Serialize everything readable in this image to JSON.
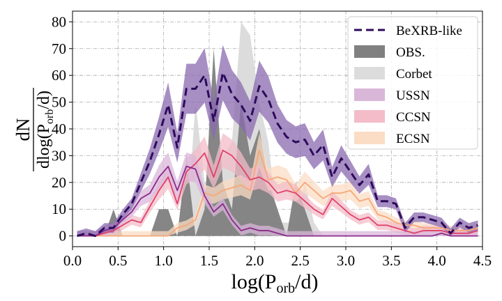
{
  "chart_data": {
    "type": "line",
    "xlabel": "log(P_orb/d)",
    "ylabel": "dN / dlog(P_orb/d)",
    "xlim": [
      0.0,
      4.5
    ],
    "ylim": [
      -4,
      84
    ],
    "x_ticks": [
      "0.0",
      "0.5",
      "1.0",
      "1.5",
      "2.0",
      "2.5",
      "3.0",
      "3.5",
      "4.0",
      "4.5"
    ],
    "y_ticks": [
      "0",
      "10",
      "20",
      "30",
      "40",
      "50",
      "60",
      "70",
      "80"
    ],
    "grid": true,
    "legend_position": "top-right",
    "series": [
      {
        "name": "BeXRB-like",
        "style": "dashed",
        "color": "#2d0a5a",
        "band_color": "#8a6ab0",
        "x": [
          0.05,
          0.15,
          0.25,
          0.35,
          0.45,
          0.55,
          0.65,
          0.75,
          0.85,
          0.95,
          1.05,
          1.15,
          1.25,
          1.35,
          1.45,
          1.55,
          1.65,
          1.75,
          1.85,
          1.95,
          2.05,
          2.15,
          2.25,
          2.35,
          2.45,
          2.55,
          2.65,
          2.75,
          2.85,
          2.95,
          3.05,
          3.15,
          3.25,
          3.35,
          3.45,
          3.55,
          3.65,
          3.75,
          3.85,
          3.95,
          4.05,
          4.15,
          4.25,
          4.35,
          4.45
        ],
        "values": [
          0,
          1,
          0,
          3,
          3,
          8,
          12,
          20,
          28,
          38,
          49,
          33,
          55,
          55,
          60,
          43,
          61,
          53,
          49,
          43,
          56,
          51,
          42,
          37,
          35,
          36,
          30,
          34,
          22,
          29,
          24,
          19,
          23,
          13,
          13,
          12,
          3,
          7,
          7,
          6,
          5,
          1,
          5,
          3,
          4
        ]
      },
      {
        "name": "OBS.",
        "style": "fill",
        "color": "#808080",
        "x": [
          0.25,
          0.35,
          0.45,
          0.55,
          0.65,
          0.75,
          0.85,
          0.95,
          1.05,
          1.15,
          1.25,
          1.35,
          1.45,
          1.55,
          1.65,
          1.75,
          1.85,
          1.95,
          2.05,
          2.15,
          2.25,
          2.35,
          2.45,
          2.55,
          2.65,
          2.75
        ],
        "values": [
          0,
          0,
          10,
          0,
          0,
          0,
          0,
          10,
          10,
          0,
          30,
          0,
          10,
          70,
          20,
          10,
          50,
          30,
          40,
          20,
          10,
          0,
          20,
          10,
          0,
          0
        ]
      },
      {
        "name": "Corbet",
        "style": "fill",
        "color": "#dcdcdc",
        "x": [
          1.15,
          1.25,
          1.35,
          1.45,
          1.55,
          1.65,
          1.75,
          1.85,
          1.95,
          2.05,
          2.15,
          2.25,
          2.35,
          2.45,
          2.55,
          2.65,
          2.75
        ],
        "values": [
          0,
          0,
          50,
          20,
          20,
          30,
          35,
          80,
          75,
          50,
          35,
          5,
          5,
          5,
          20,
          5,
          0
        ]
      },
      {
        "name": "USSN",
        "style": "line",
        "color": "#8b2a8a",
        "band_color": "#d9b7d9",
        "x": [
          0.05,
          0.15,
          0.25,
          0.35,
          0.45,
          0.55,
          0.65,
          0.75,
          0.85,
          0.95,
          1.05,
          1.15,
          1.25,
          1.35,
          1.45,
          1.55,
          1.65,
          1.75,
          1.85,
          1.95,
          2.05,
          2.15,
          2.25,
          2.35,
          2.45,
          2.55,
          2.65,
          2.75,
          2.85,
          2.95,
          3.05,
          3.15,
          3.25,
          3.35,
          3.45,
          3.55,
          3.65,
          3.75,
          3.85,
          3.95,
          4.05,
          4.15,
          4.25,
          4.35,
          4.45
        ],
        "values": [
          0,
          0,
          0,
          2,
          3,
          6,
          9,
          14,
          16,
          22,
          26,
          17,
          26,
          25,
          15,
          9,
          12,
          6,
          2,
          3,
          2,
          2,
          1,
          0,
          0,
          0,
          0,
          0,
          0,
          0,
          0,
          0,
          0,
          0,
          0,
          0,
          0,
          0,
          0,
          0,
          1,
          0,
          0,
          0,
          0
        ]
      },
      {
        "name": "CCSN",
        "style": "line",
        "color": "#e0406a",
        "band_color": "#f3bcc8",
        "x": [
          0.05,
          0.15,
          0.25,
          0.35,
          0.45,
          0.55,
          0.65,
          0.75,
          0.85,
          0.95,
          1.05,
          1.15,
          1.25,
          1.35,
          1.45,
          1.55,
          1.65,
          1.75,
          1.85,
          1.95,
          2.05,
          2.15,
          2.25,
          2.35,
          2.45,
          2.55,
          2.65,
          2.75,
          2.85,
          2.95,
          3.05,
          3.15,
          3.25,
          3.35,
          3.45,
          3.55,
          3.65,
          3.75,
          3.85,
          3.95,
          4.05,
          4.15,
          4.25,
          4.35,
          4.45
        ],
        "values": [
          0,
          0,
          0,
          1,
          2,
          4,
          6,
          5,
          11,
          17,
          22,
          12,
          24,
          27,
          31,
          22,
          32,
          30,
          26,
          21,
          22,
          20,
          16,
          17,
          16,
          13,
          10,
          8,
          14,
          11,
          8,
          6,
          7,
          4,
          4,
          3,
          2,
          1,
          2,
          2,
          2,
          1,
          1,
          1,
          2
        ]
      },
      {
        "name": "ECSN",
        "style": "line",
        "color": "#f5a878",
        "band_color": "#fbdcc4",
        "x": [
          0.05,
          0.15,
          0.25,
          0.35,
          0.45,
          0.55,
          0.65,
          0.75,
          0.85,
          0.95,
          1.05,
          1.15,
          1.25,
          1.35,
          1.45,
          1.55,
          1.65,
          1.75,
          1.85,
          1.95,
          2.05,
          2.15,
          2.25,
          2.35,
          2.45,
          2.55,
          2.65,
          2.75,
          2.85,
          2.95,
          3.05,
          3.15,
          3.25,
          3.35,
          3.45,
          3.55,
          3.65,
          3.75,
          3.85,
          3.95,
          4.05,
          4.15,
          4.25,
          4.35,
          4.45
        ],
        "values": [
          0,
          0,
          0,
          0,
          0,
          0,
          0,
          0,
          0,
          0,
          0,
          3,
          4,
          6,
          16,
          15,
          17,
          18,
          19,
          17,
          32,
          21,
          22,
          21,
          16,
          20,
          17,
          14,
          16,
          16,
          17,
          13,
          14,
          8,
          7,
          5,
          4,
          4,
          3,
          3,
          3,
          2,
          2,
          2,
          3
        ]
      }
    ]
  }
}
